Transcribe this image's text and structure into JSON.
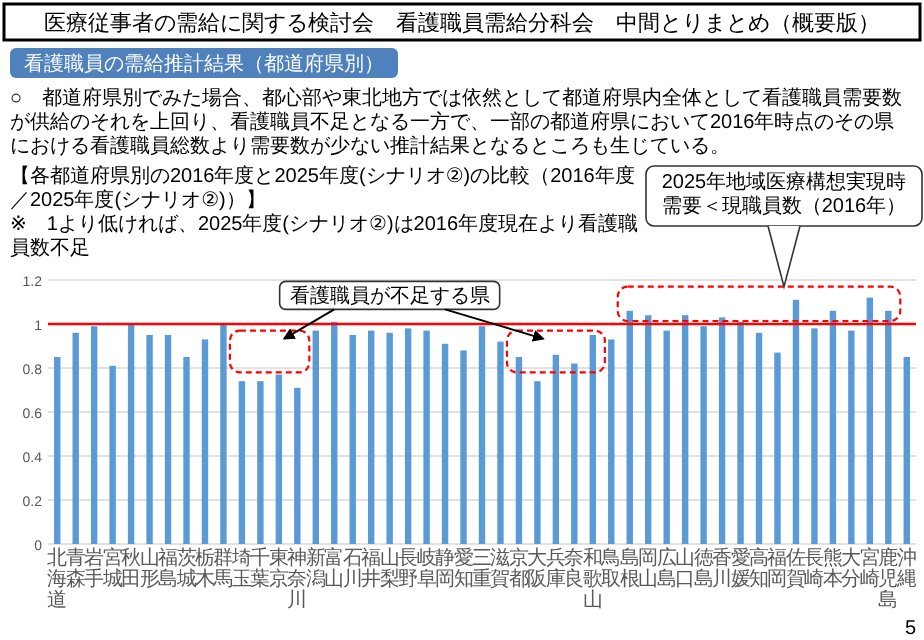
{
  "chart_data": {
    "type": "bar",
    "title": "医療従事者の需給に関する検討会　看護職員需給分科会　中間とりまとめ（概要版）",
    "subtitle": "看護職員の需給推計結果（都道府県別）",
    "categories": [
      "北海道",
      "青森",
      "岩手",
      "宮城",
      "秋田",
      "山形",
      "福島",
      "茨城",
      "栃木",
      "群馬",
      "埼玉",
      "千葉",
      "東京",
      "神奈川",
      "新潟",
      "富山",
      "石川",
      "福井",
      "山梨",
      "長野",
      "岐阜",
      "静岡",
      "愛知",
      "三重",
      "滋賀",
      "京都",
      "大阪",
      "兵庫",
      "奈良",
      "和歌山",
      "鳥取",
      "島根",
      "岡山",
      "広島",
      "山口",
      "徳島",
      "香川",
      "愛媛",
      "高知",
      "福岡",
      "佐賀",
      "長崎",
      "熊本",
      "大分",
      "宮崎",
      "鹿児島",
      "沖縄"
    ],
    "values": [
      0.85,
      0.96,
      0.99,
      0.81,
      1.0,
      0.95,
      0.95,
      0.85,
      0.93,
      1.0,
      0.74,
      0.74,
      0.77,
      0.71,
      0.97,
      1.01,
      0.95,
      0.97,
      0.96,
      0.98,
      0.97,
      0.91,
      0.88,
      0.99,
      0.92,
      0.85,
      0.74,
      0.86,
      0.82,
      0.95,
      0.93,
      1.06,
      1.04,
      0.97,
      1.04,
      0.99,
      1.03,
      1.01,
      0.96,
      0.87,
      1.11,
      0.98,
      1.06,
      0.97,
      1.12,
      1.06,
      0.85
    ],
    "color": "#5b9bd5",
    "ylim": [
      0,
      1.2
    ],
    "yticks": [
      0,
      0.2,
      0.4,
      0.6,
      0.8,
      1,
      1.2
    ],
    "grid": "y",
    "ref_lines": [
      {
        "axis": "y",
        "value": 1,
        "color": "#ff0000"
      }
    ],
    "annotations": [
      "○　都道府県別でみた場合、都心部や東北地方では依然として都道府県内全体として看護職員需要数が供給のそれを上回り、看護職員不足となる一方で、一部の都道府県において2016年時点のその県における看護職員総数より需要数が少ない推計結果となるところも生じている。",
      "【各都道府県別の2016年度と2025年度(シナリオ②)の比較（2016年度／2025年度(シナリオ②)）】",
      "※　1より低ければ、2025年度(シナリオ②)は2016年度現在より看護職員数不足",
      "看護職員が不足する県",
      "2025年地域医療構想実現時",
      "需要＜現職員数（2016年）",
      "5"
    ]
  }
}
